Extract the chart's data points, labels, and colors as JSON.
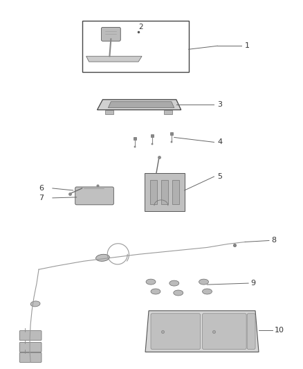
{
  "bg_color": "#ffffff",
  "lc": "#666666",
  "dc": "#333333",
  "pc": "#999999",
  "figsize": [
    4.38,
    5.33
  ],
  "dpi": 100
}
